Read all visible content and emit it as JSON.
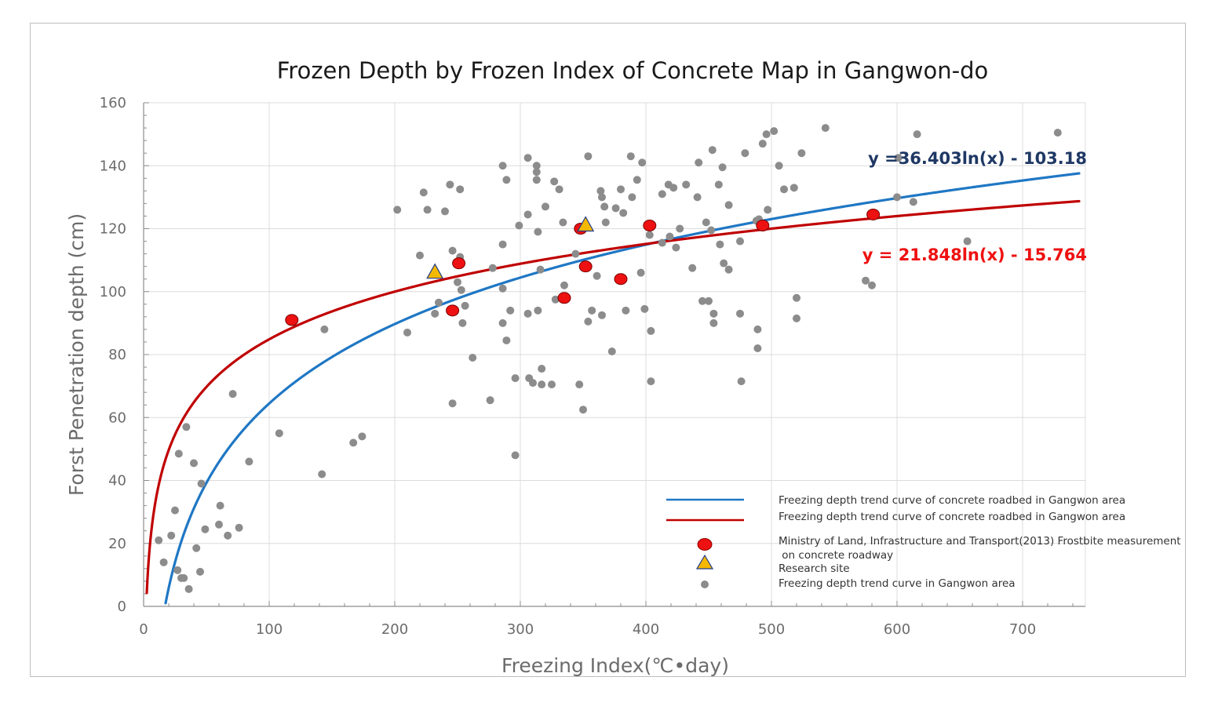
{
  "chart_data": {
    "type": "scatter",
    "title": "Frozen Depth by Frozen Index of Concrete Map in Gangwon-do",
    "xlabel": "Freezing  Index(℃•day)",
    "ylabel": "Forst Penetration depth (cm)",
    "xlim": [
      0,
      750
    ],
    "ylim": [
      0,
      160
    ],
    "xticks": [
      "0",
      "100",
      "200",
      "300",
      "400",
      "500",
      "600",
      "700"
    ],
    "yticks": [
      "0",
      "20",
      "40",
      "60",
      "80",
      "100",
      "120",
      "140",
      "160"
    ],
    "grid": true,
    "legend_position": "bottom-right",
    "trendlines": [
      {
        "name": "Freezing depth trend curve of concrete roadbed in Gangwon area",
        "a": 36.403,
        "b": -103.18,
        "color": "#1f77c4",
        "equation": "y =36.403ln(x) - 103.18",
        "equation_color": "#1f3864"
      },
      {
        "name": "Freezing depth trend curve of concrete roadbed in Gangwon area",
        "a": 21.848,
        "b": -15.764,
        "color": "#c00000",
        "equation": "y = 21.848ln(x) - 15.764",
        "equation_color": "#ee1111"
      }
    ],
    "series": [
      {
        "name": "Ministry of Land, Infrastructure and Transport(2013) Frostbite measurement on concrete roadway",
        "legend_line1": "Ministry of Land, Infrastructure and Transport(2013) Frostbite measurement",
        "legend_line2": " on concrete roadway",
        "marker": "red-circle",
        "color": "#ee1111",
        "points": [
          [
            118,
            91
          ],
          [
            246,
            94
          ],
          [
            251,
            109
          ],
          [
            335,
            98
          ],
          [
            348,
            120
          ],
          [
            352,
            108
          ],
          [
            380,
            104
          ],
          [
            403,
            121
          ],
          [
            493,
            121
          ],
          [
            581,
            124.5
          ]
        ]
      },
      {
        "name": "Research site",
        "marker": "yellow-triangle",
        "color": "#f5b800",
        "points": [
          [
            232,
            106
          ],
          [
            352,
            121
          ]
        ]
      },
      {
        "name": "Freezing depth trend curve in Gangwon area",
        "marker": "gray-dot",
        "color": "#8c8c8c",
        "points": [
          [
            12,
            21
          ],
          [
            16,
            14
          ],
          [
            22,
            22.5
          ],
          [
            25,
            30.5
          ],
          [
            27,
            11.5
          ],
          [
            28,
            48.5
          ],
          [
            30,
            9
          ],
          [
            32,
            9
          ],
          [
            34,
            57
          ],
          [
            36,
            5.5
          ],
          [
            40,
            45.5
          ],
          [
            42,
            18.5
          ],
          [
            45,
            11
          ],
          [
            46,
            39
          ],
          [
            49,
            24.5
          ],
          [
            60,
            26
          ],
          [
            61,
            32
          ],
          [
            67,
            22.5
          ],
          [
            71,
            67.5
          ],
          [
            76,
            25
          ],
          [
            84,
            46
          ],
          [
            108,
            55
          ],
          [
            142,
            42
          ],
          [
            144,
            88
          ],
          [
            167,
            52
          ],
          [
            174,
            54
          ],
          [
            202,
            126
          ],
          [
            210,
            87
          ],
          [
            220,
            111.5
          ],
          [
            223,
            131.5
          ],
          [
            226,
            126
          ],
          [
            232,
            93
          ],
          [
            235,
            96.5
          ],
          [
            240,
            125.5
          ],
          [
            244,
            134
          ],
          [
            246,
            64.5
          ],
          [
            246,
            113
          ],
          [
            250,
            103
          ],
          [
            252,
            111
          ],
          [
            252,
            132.5
          ],
          [
            253,
            100.5
          ],
          [
            254,
            90
          ],
          [
            256,
            95.5
          ],
          [
            262,
            79
          ],
          [
            276,
            65.5
          ],
          [
            278,
            107.5
          ],
          [
            286,
            140
          ],
          [
            286,
            115
          ],
          [
            286,
            101
          ],
          [
            286,
            90
          ],
          [
            289,
            135.5
          ],
          [
            289,
            84.5
          ],
          [
            292,
            94
          ],
          [
            296,
            72.5
          ],
          [
            296,
            48
          ],
          [
            299,
            121
          ],
          [
            306,
            142.5
          ],
          [
            306,
            124.5
          ],
          [
            306,
            93
          ],
          [
            307,
            72.5
          ],
          [
            310,
            71
          ],
          [
            313,
            140
          ],
          [
            313,
            138
          ],
          [
            313,
            135.5
          ],
          [
            314,
            119
          ],
          [
            314,
            94
          ],
          [
            316,
            107
          ],
          [
            317,
            75.5
          ],
          [
            317,
            70.5
          ],
          [
            320,
            127
          ],
          [
            325,
            70.5
          ],
          [
            327,
            135
          ],
          [
            328,
            97.5
          ],
          [
            331,
            132.5
          ],
          [
            334,
            122
          ],
          [
            335,
            102
          ],
          [
            344,
            112
          ],
          [
            347,
            70.5
          ],
          [
            348,
            119.5
          ],
          [
            350,
            62.5
          ],
          [
            354,
            143
          ],
          [
            354,
            90.5
          ],
          [
            357,
            94
          ],
          [
            361,
            105
          ],
          [
            364,
            132
          ],
          [
            365,
            130
          ],
          [
            365,
            92.5
          ],
          [
            367,
            127
          ],
          [
            368,
            122
          ],
          [
            373,
            81
          ],
          [
            376,
            126.5
          ],
          [
            380,
            132.5
          ],
          [
            382,
            125
          ],
          [
            384,
            94
          ],
          [
            388,
            143
          ],
          [
            389,
            130
          ],
          [
            393,
            135.5
          ],
          [
            396,
            106
          ],
          [
            397,
            141
          ],
          [
            399,
            94.5
          ],
          [
            403,
            118
          ],
          [
            404,
            87.5
          ],
          [
            404,
            71.5
          ],
          [
            413,
            131
          ],
          [
            413,
            115.5
          ],
          [
            418,
            134
          ],
          [
            419,
            117.5
          ],
          [
            422,
            133
          ],
          [
            424,
            114
          ],
          [
            427,
            120
          ],
          [
            432,
            134
          ],
          [
            437,
            107.5
          ],
          [
            441,
            130
          ],
          [
            442,
            141
          ],
          [
            445,
            97
          ],
          [
            448,
            122
          ],
          [
            450,
            97
          ],
          [
            452,
            119.5
          ],
          [
            453,
            145
          ],
          [
            454,
            93
          ],
          [
            454,
            90
          ],
          [
            458,
            134
          ],
          [
            459,
            115
          ],
          [
            461,
            139.5
          ],
          [
            462,
            109
          ],
          [
            466,
            127.5
          ],
          [
            466,
            107
          ],
          [
            475,
            116
          ],
          [
            475,
            93
          ],
          [
            476,
            71.5
          ],
          [
            479,
            144
          ],
          [
            488,
            122.5
          ],
          [
            489,
            82
          ],
          [
            489,
            88
          ],
          [
            490,
            123
          ],
          [
            493,
            147
          ],
          [
            496,
            150
          ],
          [
            497,
            126
          ],
          [
            502,
            151
          ],
          [
            506,
            140
          ],
          [
            510,
            132.5
          ],
          [
            518,
            133
          ],
          [
            520,
            98
          ],
          [
            520,
            91.5
          ],
          [
            524,
            144
          ],
          [
            543,
            152
          ],
          [
            575,
            103.5
          ],
          [
            580,
            102
          ],
          [
            600,
            130
          ],
          [
            601,
            142.5
          ],
          [
            613,
            128.5
          ],
          [
            616,
            150
          ],
          [
            656,
            116
          ],
          [
            728,
            150.5
          ]
        ]
      }
    ]
  }
}
